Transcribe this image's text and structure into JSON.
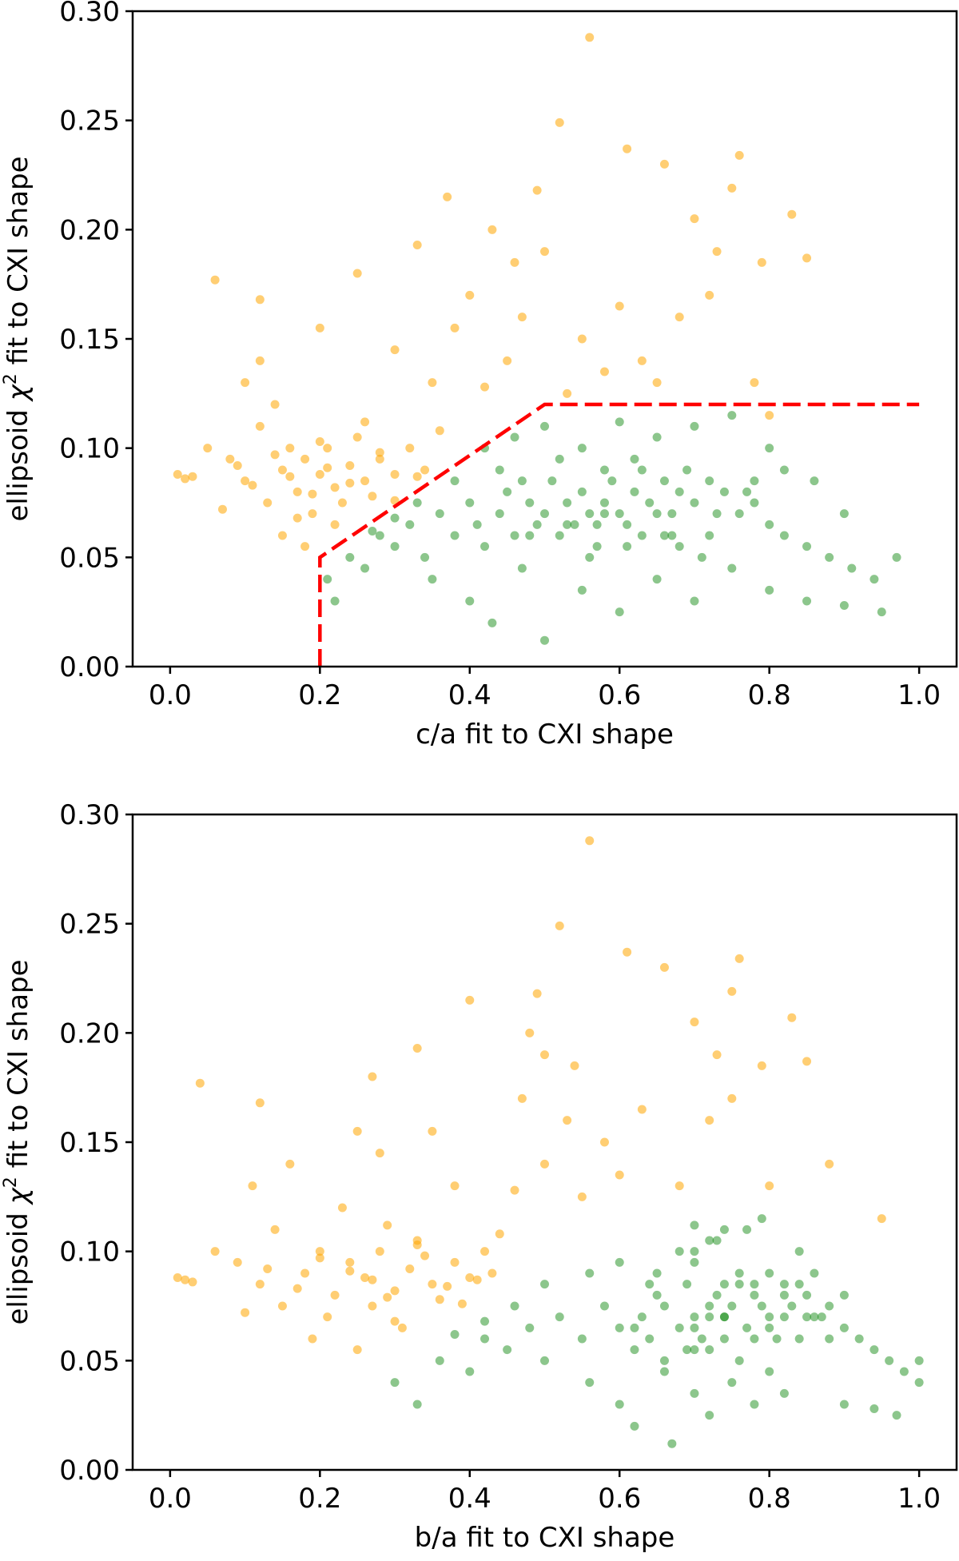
{
  "chart_data": [
    {
      "type": "scatter",
      "xlabel": "c/a fit to CXI shape",
      "ylabel": "ellipsoid χ² fit to CXI shape",
      "ylabel_main": "ellipsoid ",
      "ylabel_chi": "χ",
      "ylabel_sup": "2",
      "ylabel_rest": " fit to CXI shape",
      "xlim": [
        -0.05,
        1.05
      ],
      "ylim": [
        0.0,
        0.3
      ],
      "xticks": [
        "0.0",
        "0.2",
        "0.4",
        "0.6",
        "0.8",
        "1.0"
      ],
      "yticks": [
        "0.00",
        "0.05",
        "0.10",
        "0.15",
        "0.20",
        "0.25",
        "0.30"
      ],
      "grid": false,
      "x_field": 0,
      "boundary": {
        "color": "#ff0000",
        "style": "dashed",
        "points": [
          [
            0.2,
            0.0
          ],
          [
            0.2,
            0.05
          ],
          [
            0.5,
            0.12
          ],
          [
            1.0,
            0.12
          ]
        ]
      }
    },
    {
      "type": "scatter",
      "xlabel": "b/a fit to CXI shape",
      "ylabel": "ellipsoid χ² fit to CXI shape",
      "ylabel_main": "ellipsoid ",
      "ylabel_chi": "χ",
      "ylabel_sup": "2",
      "ylabel_rest": " fit to CXI shape",
      "xlim": [
        -0.05,
        1.05
      ],
      "ylim": [
        0.0,
        0.3
      ],
      "xticks": [
        "0.0",
        "0.2",
        "0.4",
        "0.6",
        "0.8",
        "1.0"
      ],
      "yticks": [
        "0.00",
        "0.05",
        "0.10",
        "0.15",
        "0.20",
        "0.25",
        "0.30"
      ],
      "grid": false,
      "x_field": 1
    }
  ],
  "point_fields": [
    "c/a",
    "b/a",
    "chi2"
  ],
  "series": [
    {
      "color": "#ffa500",
      "points": [
        [
          0.01,
          0.01,
          0.088
        ],
        [
          0.02,
          0.03,
          0.086
        ],
        [
          0.03,
          0.02,
          0.087
        ],
        [
          0.05,
          0.06,
          0.1
        ],
        [
          0.08,
          0.09,
          0.095
        ],
        [
          0.1,
          0.12,
          0.085
        ],
        [
          0.12,
          0.14,
          0.11
        ],
        [
          0.13,
          0.15,
          0.075
        ],
        [
          0.15,
          0.18,
          0.09
        ],
        [
          0.16,
          0.2,
          0.1
        ],
        [
          0.17,
          0.22,
          0.08
        ],
        [
          0.18,
          0.24,
          0.095
        ],
        [
          0.19,
          0.21,
          0.07
        ],
        [
          0.2,
          0.26,
          0.088
        ],
        [
          0.21,
          0.28,
          0.1
        ],
        [
          0.22,
          0.3,
          0.082
        ],
        [
          0.23,
          0.27,
          0.075
        ],
        [
          0.24,
          0.32,
          0.092
        ],
        [
          0.25,
          0.33,
          0.105
        ],
        [
          0.26,
          0.35,
          0.085
        ],
        [
          0.27,
          0.36,
          0.078
        ],
        [
          0.28,
          0.38,
          0.095
        ],
        [
          0.3,
          0.4,
          0.088
        ],
        [
          0.32,
          0.42,
          0.1
        ],
        [
          0.34,
          0.43,
          0.09
        ],
        [
          0.36,
          0.44,
          0.108
        ],
        [
          0.1,
          0.11,
          0.13
        ],
        [
          0.12,
          0.16,
          0.14
        ],
        [
          0.15,
          0.19,
          0.06
        ],
        [
          0.18,
          0.25,
          0.055
        ],
        [
          0.07,
          0.1,
          0.072
        ],
        [
          0.14,
          0.23,
          0.12
        ],
        [
          0.22,
          0.31,
          0.065
        ],
        [
          0.09,
          0.13,
          0.092
        ],
        [
          0.11,
          0.17,
          0.083
        ],
        [
          0.14,
          0.2,
          0.097
        ],
        [
          0.16,
          0.27,
          0.087
        ],
        [
          0.19,
          0.29,
          0.079
        ],
        [
          0.21,
          0.24,
          0.091
        ],
        [
          0.24,
          0.37,
          0.084
        ],
        [
          0.28,
          0.34,
          0.098
        ],
        [
          0.3,
          0.39,
          0.076
        ],
        [
          0.33,
          0.41,
          0.087
        ],
        [
          0.26,
          0.29,
          0.112
        ],
        [
          0.2,
          0.33,
          0.103
        ],
        [
          0.17,
          0.3,
          0.068
        ],
        [
          0.06,
          0.04,
          0.177
        ],
        [
          0.12,
          0.12,
          0.168
        ],
        [
          0.2,
          0.25,
          0.155
        ],
        [
          0.25,
          0.27,
          0.18
        ],
        [
          0.33,
          0.33,
          0.193
        ],
        [
          0.37,
          0.4,
          0.215
        ],
        [
          0.4,
          0.47,
          0.17
        ],
        [
          0.43,
          0.48,
          0.2
        ],
        [
          0.46,
          0.54,
          0.185
        ],
        [
          0.49,
          0.49,
          0.218
        ],
        [
          0.5,
          0.5,
          0.19
        ],
        [
          0.52,
          0.52,
          0.249
        ],
        [
          0.56,
          0.56,
          0.288
        ],
        [
          0.61,
          0.61,
          0.237
        ],
        [
          0.66,
          0.66,
          0.23
        ],
        [
          0.7,
          0.7,
          0.205
        ],
        [
          0.73,
          0.73,
          0.19
        ],
        [
          0.76,
          0.76,
          0.234
        ],
        [
          0.75,
          0.75,
          0.219
        ],
        [
          0.83,
          0.83,
          0.207
        ],
        [
          0.79,
          0.79,
          0.185
        ],
        [
          0.85,
          0.85,
          0.187
        ],
        [
          0.45,
          0.5,
          0.14
        ],
        [
          0.55,
          0.58,
          0.15
        ],
        [
          0.6,
          0.63,
          0.165
        ],
        [
          0.65,
          0.68,
          0.13
        ],
        [
          0.68,
          0.72,
          0.16
        ],
        [
          0.72,
          0.75,
          0.17
        ],
        [
          0.78,
          0.8,
          0.13
        ],
        [
          0.42,
          0.46,
          0.128
        ],
        [
          0.38,
          0.35,
          0.155
        ],
        [
          0.47,
          0.53,
          0.16
        ],
        [
          0.58,
          0.6,
          0.135
        ],
        [
          0.63,
          0.88,
          0.14
        ],
        [
          0.8,
          0.95,
          0.115
        ],
        [
          0.3,
          0.28,
          0.145
        ],
        [
          0.35,
          0.38,
          0.13
        ],
        [
          0.53,
          0.55,
          0.125
        ]
      ]
    },
    {
      "color": "#008000",
      "points": [
        [
          0.21,
          0.3,
          0.04
        ],
        [
          0.22,
          0.33,
          0.03
        ],
        [
          0.24,
          0.36,
          0.05
        ],
        [
          0.26,
          0.4,
          0.045
        ],
        [
          0.28,
          0.42,
          0.06
        ],
        [
          0.3,
          0.45,
          0.055
        ],
        [
          0.32,
          0.48,
          0.065
        ],
        [
          0.34,
          0.5,
          0.05
        ],
        [
          0.36,
          0.52,
          0.07
        ],
        [
          0.38,
          0.55,
          0.06
        ],
        [
          0.4,
          0.58,
          0.075
        ],
        [
          0.41,
          0.6,
          0.065
        ],
        [
          0.42,
          0.62,
          0.055
        ],
        [
          0.44,
          0.63,
          0.07
        ],
        [
          0.45,
          0.65,
          0.08
        ],
        [
          0.46,
          0.64,
          0.06
        ],
        [
          0.48,
          0.66,
          0.075
        ],
        [
          0.49,
          0.68,
          0.065
        ],
        [
          0.5,
          0.7,
          0.07
        ],
        [
          0.51,
          0.69,
          0.085
        ],
        [
          0.52,
          0.71,
          0.06
        ],
        [
          0.53,
          0.72,
          0.075
        ],
        [
          0.54,
          0.7,
          0.065
        ],
        [
          0.55,
          0.73,
          0.08
        ],
        [
          0.56,
          0.74,
          0.07
        ],
        [
          0.57,
          0.72,
          0.055
        ],
        [
          0.58,
          0.75,
          0.075
        ],
        [
          0.59,
          0.76,
          0.085
        ],
        [
          0.6,
          0.74,
          0.07
        ],
        [
          0.61,
          0.77,
          0.065
        ],
        [
          0.62,
          0.78,
          0.08
        ],
        [
          0.63,
          0.76,
          0.09
        ],
        [
          0.64,
          0.79,
          0.075
        ],
        [
          0.65,
          0.8,
          0.07
        ],
        [
          0.66,
          0.78,
          0.085
        ],
        [
          0.67,
          0.81,
          0.06
        ],
        [
          0.68,
          0.82,
          0.08
        ],
        [
          0.69,
          0.8,
          0.09
        ],
        [
          0.7,
          0.83,
          0.075
        ],
        [
          0.72,
          0.84,
          0.085
        ],
        [
          0.74,
          0.85,
          0.08
        ],
        [
          0.76,
          0.86,
          0.07
        ],
        [
          0.78,
          0.88,
          0.075
        ],
        [
          0.8,
          0.9,
          0.065
        ],
        [
          0.82,
          0.92,
          0.06
        ],
        [
          0.85,
          0.94,
          0.055
        ],
        [
          0.88,
          0.96,
          0.05
        ],
        [
          0.91,
          0.98,
          0.045
        ],
        [
          0.94,
          1.0,
          0.04
        ],
        [
          0.97,
          1.0,
          0.05
        ],
        [
          0.35,
          0.56,
          0.04
        ],
        [
          0.4,
          0.6,
          0.03
        ],
        [
          0.43,
          0.62,
          0.02
        ],
        [
          0.47,
          0.66,
          0.045
        ],
        [
          0.5,
          0.67,
          0.012
        ],
        [
          0.55,
          0.7,
          0.035
        ],
        [
          0.6,
          0.72,
          0.025
        ],
        [
          0.65,
          0.75,
          0.04
        ],
        [
          0.7,
          0.78,
          0.03
        ],
        [
          0.75,
          0.8,
          0.045
        ],
        [
          0.8,
          0.82,
          0.035
        ],
        [
          0.85,
          0.9,
          0.03
        ],
        [
          0.9,
          0.94,
          0.028
        ],
        [
          0.95,
          0.97,
          0.025
        ],
        [
          0.42,
          0.7,
          0.1
        ],
        [
          0.46,
          0.72,
          0.105
        ],
        [
          0.5,
          0.74,
          0.11
        ],
        [
          0.55,
          0.68,
          0.1
        ],
        [
          0.6,
          0.7,
          0.112
        ],
        [
          0.65,
          0.73,
          0.105
        ],
        [
          0.7,
          0.77,
          0.11
        ],
        [
          0.75,
          0.79,
          0.115
        ],
        [
          0.8,
          0.84,
          0.1
        ],
        [
          0.38,
          0.5,
          0.085
        ],
        [
          0.33,
          0.46,
          0.075
        ],
        [
          0.3,
          0.42,
          0.068
        ],
        [
          0.27,
          0.38,
          0.062
        ],
        [
          0.44,
          0.56,
          0.09
        ],
        [
          0.52,
          0.6,
          0.095
        ],
        [
          0.58,
          0.65,
          0.09
        ],
        [
          0.62,
          0.7,
          0.095
        ],
        [
          0.67,
          0.85,
          0.07
        ],
        [
          0.72,
          0.88,
          0.06
        ],
        [
          0.77,
          0.9,
          0.08
        ],
        [
          0.82,
          0.86,
          0.09
        ],
        [
          0.86,
          0.82,
          0.085
        ],
        [
          0.9,
          0.87,
          0.07
        ],
        [
          0.56,
          0.66,
          0.05
        ],
        [
          0.61,
          0.69,
          0.055
        ],
        [
          0.66,
          0.74,
          0.06
        ],
        [
          0.71,
          0.76,
          0.05
        ],
        [
          0.48,
          0.78,
          0.06
        ],
        [
          0.53,
          0.8,
          0.065
        ],
        [
          0.58,
          0.82,
          0.07
        ],
        [
          0.63,
          0.84,
          0.06
        ],
        [
          0.47,
          0.64,
          0.085
        ],
        [
          0.57,
          0.62,
          0.065
        ],
        [
          0.68,
          0.7,
          0.055
        ],
        [
          0.73,
          0.72,
          0.07
        ],
        [
          0.78,
          0.74,
          0.085
        ]
      ]
    }
  ]
}
